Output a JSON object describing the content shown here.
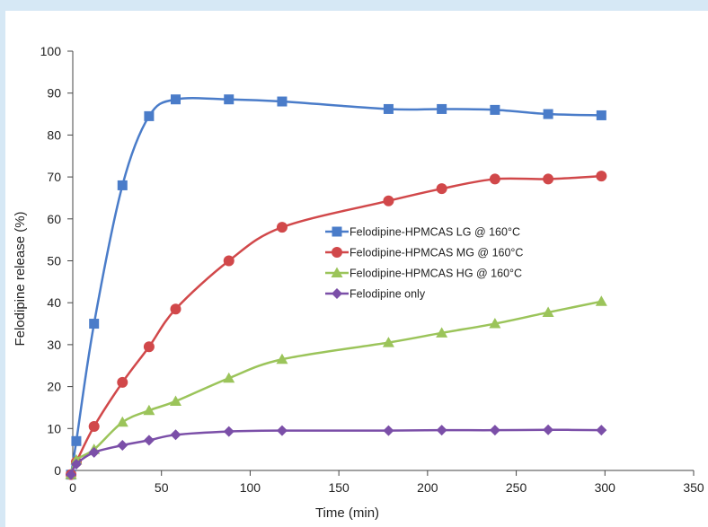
{
  "colors": {
    "page_background": "#d6e8f5",
    "chart_background": "#ffffff",
    "axis": "#444444"
  },
  "chart_data": {
    "type": "line",
    "title": "",
    "xlabel": "Time (min)",
    "ylabel": "Felodipine release (%)",
    "xlim": [
      0,
      350
    ],
    "ylim": [
      0,
      100
    ],
    "xticks": [
      0,
      50,
      100,
      150,
      200,
      250,
      300,
      350
    ],
    "yticks": [
      0,
      10,
      20,
      30,
      40,
      50,
      60,
      70,
      80,
      90,
      100
    ],
    "grid": false,
    "legend_position": "center-right",
    "series": [
      {
        "name": "Felodipine-HPMCAS LG @ 160°C",
        "color": "#4a7cc9",
        "marker": "square",
        "x": [
          -1,
          2,
          12,
          28,
          43,
          58,
          88,
          118,
          178,
          208,
          238,
          268,
          298
        ],
        "y": [
          -1,
          7,
          35,
          68,
          84.5,
          88.5,
          88.5,
          88,
          86.2,
          86.2,
          86,
          85,
          84.7
        ]
      },
      {
        "name": "Felodipine-HPMCAS MG @ 160°C",
        "color": "#d1484a",
        "marker": "circle",
        "x": [
          -1,
          2,
          12,
          28,
          43,
          58,
          88,
          118,
          178,
          208,
          238,
          268,
          298
        ],
        "y": [
          -1,
          2,
          10.5,
          21,
          29.5,
          38.5,
          50,
          58,
          64.3,
          67.2,
          69.5,
          69.5,
          70.2
        ]
      },
      {
        "name": "Felodipine-HPMCAS HG @ 160°C",
        "color": "#9bc45a",
        "marker": "triangle",
        "x": [
          -1,
          2,
          12,
          28,
          43,
          58,
          88,
          118,
          178,
          208,
          238,
          268,
          298
        ],
        "y": [
          -1,
          2.5,
          5,
          11.5,
          14.3,
          16.5,
          22,
          26.5,
          30.5,
          32.8,
          35,
          37.7,
          40.3
        ]
      },
      {
        "name": "Felodipine only",
        "color": "#7b4fa8",
        "marker": "diamond",
        "x": [
          -1,
          2,
          12,
          28,
          43,
          58,
          88,
          118,
          178,
          208,
          238,
          268,
          298
        ],
        "y": [
          -1,
          1.5,
          4.3,
          6,
          7.2,
          8.5,
          9.3,
          9.5,
          9.5,
          9.6,
          9.6,
          9.7,
          9.6
        ]
      }
    ]
  }
}
